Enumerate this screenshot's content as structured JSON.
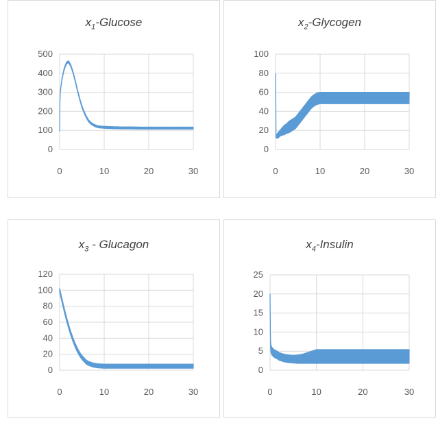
{
  "chart_data": [
    {
      "type": "line",
      "title": {
        "var": "x",
        "sub": "1",
        "rest": "-Glucose"
      },
      "xlim": [
        0,
        30
      ],
      "xticks": [
        0,
        10,
        20,
        30
      ],
      "ylim": [
        0,
        500
      ],
      "yticks": [
        0,
        100,
        200,
        300,
        400,
        500
      ],
      "grid": true,
      "color": "#5b9bd5",
      "series": [
        {
          "x": [
            0,
            0.05,
            0.15,
            0.3,
            0.5,
            0.8,
            1.0,
            1.3,
            1.6,
            2.0,
            2.5,
            3.0,
            3.5,
            4.0,
            4.5,
            5.0,
            5.5,
            6.0,
            6.5,
            7.0,
            7.5,
            8.0,
            8.5,
            9.0,
            9.5,
            10,
            11,
            12,
            14,
            16,
            18,
            20,
            22,
            24,
            26,
            28,
            30
          ],
          "y": [
            90,
            240,
            300,
            330,
            365,
            400,
            420,
            440,
            455,
            460,
            440,
            405,
            360,
            310,
            265,
            225,
            195,
            170,
            150,
            138,
            130,
            124,
            120,
            118,
            117,
            116,
            115,
            114,
            113,
            113,
            112,
            112,
            112,
            112,
            112,
            112,
            112
          ],
          "band": 5
        }
      ]
    },
    {
      "type": "line",
      "title": {
        "var": "x",
        "sub": "2",
        "rest": "-Glycogen"
      },
      "xlim": [
        0,
        30
      ],
      "xticks": [
        0,
        10,
        20,
        30
      ],
      "ylim": [
        0,
        100
      ],
      "yticks": [
        0,
        20,
        40,
        60,
        80,
        100
      ],
      "grid": true,
      "color": "#5b9bd5",
      "series": [
        {
          "x": [
            0,
            0.05,
            0.1,
            0.3,
            0.6,
            1,
            1.5,
            2,
            2.5,
            3,
            3.5,
            4,
            4.5,
            5,
            5.5,
            6,
            6.5,
            7,
            7.5,
            8,
            8.5,
            9,
            9.5,
            10,
            12,
            15,
            20,
            25,
            30
          ],
          "y": [
            80,
            60,
            13,
            14,
            15,
            17,
            19,
            20.5,
            22,
            23.5,
            25,
            26.5,
            28,
            31,
            34,
            37,
            40,
            43,
            46,
            49,
            51,
            52.5,
            53.5,
            54,
            54,
            54,
            54,
            54,
            54
          ],
          "band": [
            0,
            0,
            1,
            2,
            3,
            3,
            4,
            5,
            5,
            6,
            6,
            6,
            6,
            6,
            6,
            6,
            6,
            6,
            6,
            6,
            6,
            6,
            6,
            6,
            6,
            6,
            6,
            6,
            6
          ]
        }
      ]
    },
    {
      "type": "line",
      "title": {
        "var": "x",
        "sub": "3",
        "rest": " - Glucagon"
      },
      "xlim": [
        0,
        30
      ],
      "xticks": [
        0,
        10,
        20,
        30
      ],
      "ylim": [
        0,
        120
      ],
      "yticks": [
        0,
        20,
        40,
        60,
        80,
        100,
        120
      ],
      "grid": true,
      "color": "#5b9bd5",
      "series": [
        {
          "x": [
            0,
            0.5,
            1,
            1.5,
            2,
            2.5,
            3,
            3.5,
            4,
            4.5,
            5,
            5.5,
            6,
            6.5,
            7,
            7.5,
            8,
            8.5,
            9,
            10,
            12,
            15,
            20,
            25,
            30
          ],
          "y": [
            100,
            88,
            76,
            65,
            55,
            46,
            38,
            31,
            25,
            20,
            16,
            13,
            10,
            8.5,
            7.5,
            6.5,
            6,
            5.5,
            5.3,
            5,
            5,
            5,
            5,
            5,
            5
          ],
          "band": 2.5
        }
      ]
    },
    {
      "type": "line",
      "title": {
        "var": "x",
        "sub": "4",
        "rest": "-Insulin"
      },
      "xlim": [
        0,
        30
      ],
      "xticks": [
        0,
        10,
        20,
        30
      ],
      "ylim": [
        0,
        25
      ],
      "yticks": [
        0,
        5,
        10,
        15,
        20,
        25
      ],
      "grid": true,
      "color": "#5b9bd5",
      "series": [
        {
          "x": [
            0,
            0.05,
            0.1,
            0.2,
            0.4,
            0.7,
            1,
            1.5,
            2,
            3,
            4,
            5,
            6,
            7,
            8,
            9,
            10,
            11,
            12,
            15,
            20,
            25,
            30
          ],
          "y": [
            20,
            12,
            7,
            5.5,
            5,
            4.6,
            4.3,
            4,
            3.6,
            3.2,
            3,
            2.9,
            2.9,
            3,
            3.2,
            3.4,
            3.6,
            3.6,
            3.6,
            3.6,
            3.6,
            3.6,
            3.6
          ],
          "band": [
            0,
            1,
            1,
            1,
            1,
            1,
            1,
            1,
            1,
            1,
            1,
            1,
            1.1,
            1.2,
            1.4,
            1.6,
            1.8,
            1.8,
            1.8,
            1.8,
            1.8,
            1.8,
            1.8
          ]
        }
      ]
    }
  ]
}
